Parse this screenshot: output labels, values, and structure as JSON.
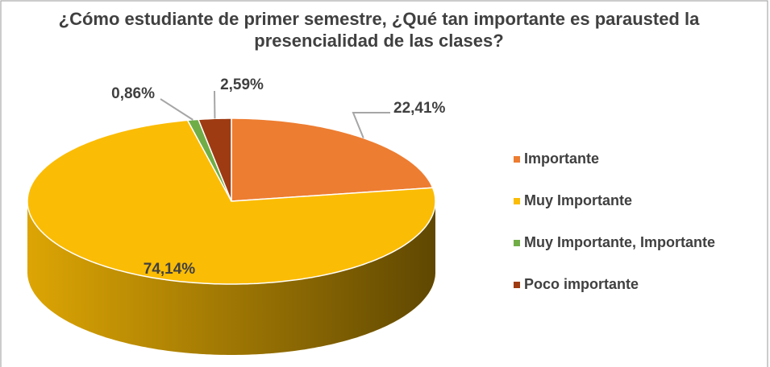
{
  "chart_data": {
    "type": "pie3d",
    "title": "¿Cómo estudiante de primer semestre, ¿Qué tan importante es parausted la presencialidad de las clases?",
    "categories": [
      "Importante",
      "Muy Importante",
      "Muy Importante, Importante",
      "Poco importante"
    ],
    "values": [
      22.41,
      74.14,
      0.86,
      2.59
    ],
    "value_labels": [
      "22,41%",
      "74,14%",
      "0,86%",
      "2,59%"
    ],
    "colors": [
      "#ED7D31",
      "#FBBC05",
      "#70AD47",
      "#9E3B12"
    ],
    "legend": "right"
  }
}
